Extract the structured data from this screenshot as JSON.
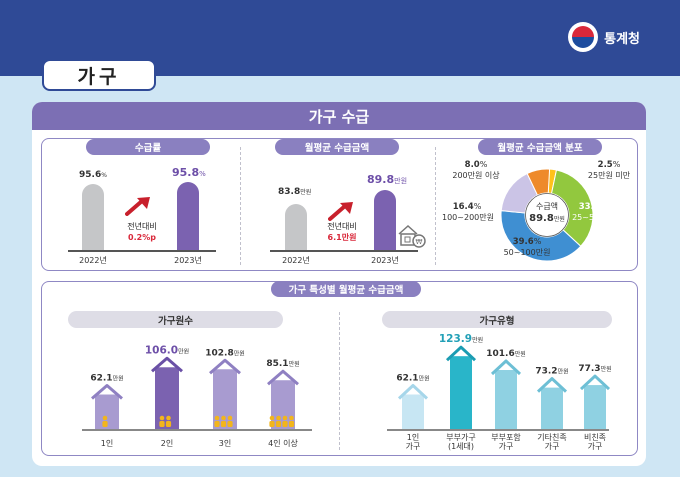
{
  "header": {
    "org": "통계청",
    "page_title": "가구"
  },
  "section": {
    "title": "가구 수급"
  },
  "supply_rate": {
    "title": "수급률",
    "unit": "%",
    "years": [
      "2022년",
      "2023년"
    ],
    "values": [
      95.6,
      95.8
    ],
    "labels": [
      "95.6",
      "95.8"
    ],
    "compare_label": "전년대비",
    "compare_value": "0.2%p",
    "compare_value_text": "0.2%p"
  },
  "monthly_amount": {
    "title": "월평균 수급금액",
    "unit": "만원",
    "years": [
      "2022년",
      "2023년"
    ],
    "values": [
      83.8,
      89.8
    ],
    "labels": [
      "83.8",
      "89.8"
    ],
    "compare_label": "전년대비",
    "compare_value_text": "6.1만원"
  },
  "distribution": {
    "title": "월평균 수급금액 분포",
    "center_label": "수급액",
    "center_value": "89.8",
    "center_unit": "만원",
    "slices": [
      {
        "range": "25만원 미만",
        "percent": 2.5,
        "label": "2.5",
        "color": "#ffc21a"
      },
      {
        "range": "25~50만원",
        "percent": 33.6,
        "label": "33.6",
        "color": "#92c83e"
      },
      {
        "range": "50~100만원",
        "percent": 39.6,
        "label": "39.6",
        "color": "#3f8fd2"
      },
      {
        "range": "100~200만원",
        "percent": 16.4,
        "label": "16.4",
        "color": "#cbc4e6"
      },
      {
        "range": "200만원 이상",
        "percent": 8.0,
        "label": "8.0",
        "color": "#ee8a2a"
      }
    ]
  },
  "household": {
    "title": "가구 특성별 월평균 수급금액",
    "size": {
      "title": "가구원수",
      "categories": [
        "1인",
        "2인",
        "3인",
        "4인 이상"
      ],
      "values": [
        62.1,
        106.0,
        102.8,
        85.1
      ],
      "labels": [
        "62.1",
        "106.0",
        "102.8",
        "85.1"
      ]
    },
    "type": {
      "title": "가구유형",
      "categories": [
        "1인\n가구",
        "부부가구\n(1세대)",
        "부부포함\n가구",
        "기타친족\n가구",
        "비친족\n가구"
      ],
      "values": [
        62.1,
        123.9,
        101.6,
        73.2,
        77.3
      ],
      "labels": [
        "62.1",
        "123.9",
        "101.6",
        "73.2",
        "77.3"
      ]
    },
    "unit": "만원"
  },
  "chart_data": [
    {
      "type": "bar",
      "title": "수급률",
      "categories": [
        "2022년",
        "2023년"
      ],
      "values": [
        95.6,
        95.8
      ],
      "unit": "%"
    },
    {
      "type": "bar",
      "title": "월평균 수급금액",
      "categories": [
        "2022년",
        "2023년"
      ],
      "values": [
        83.8,
        89.8
      ],
      "unit": "만원"
    },
    {
      "type": "pie",
      "title": "월평균 수급금액 분포",
      "categories": [
        "25만원 미만",
        "25~50만원",
        "50~100만원",
        "100~200만원",
        "200만원 이상"
      ],
      "values": [
        2.5,
        33.6,
        39.6,
        16.4,
        8.0
      ],
      "unit": "%"
    },
    {
      "type": "bar",
      "title": "가구원수",
      "categories": [
        "1인",
        "2인",
        "3인",
        "4인 이상"
      ],
      "values": [
        62.1,
        106.0,
        102.8,
        85.1
      ],
      "unit": "만원"
    },
    {
      "type": "bar",
      "title": "가구유형",
      "categories": [
        "1인 가구",
        "부부가구 (1세대)",
        "부부포함 가구",
        "기타친족 가구",
        "비친족 가구"
      ],
      "values": [
        62.1,
        123.9,
        101.6,
        73.2,
        77.3
      ],
      "unit": "만원"
    }
  ]
}
